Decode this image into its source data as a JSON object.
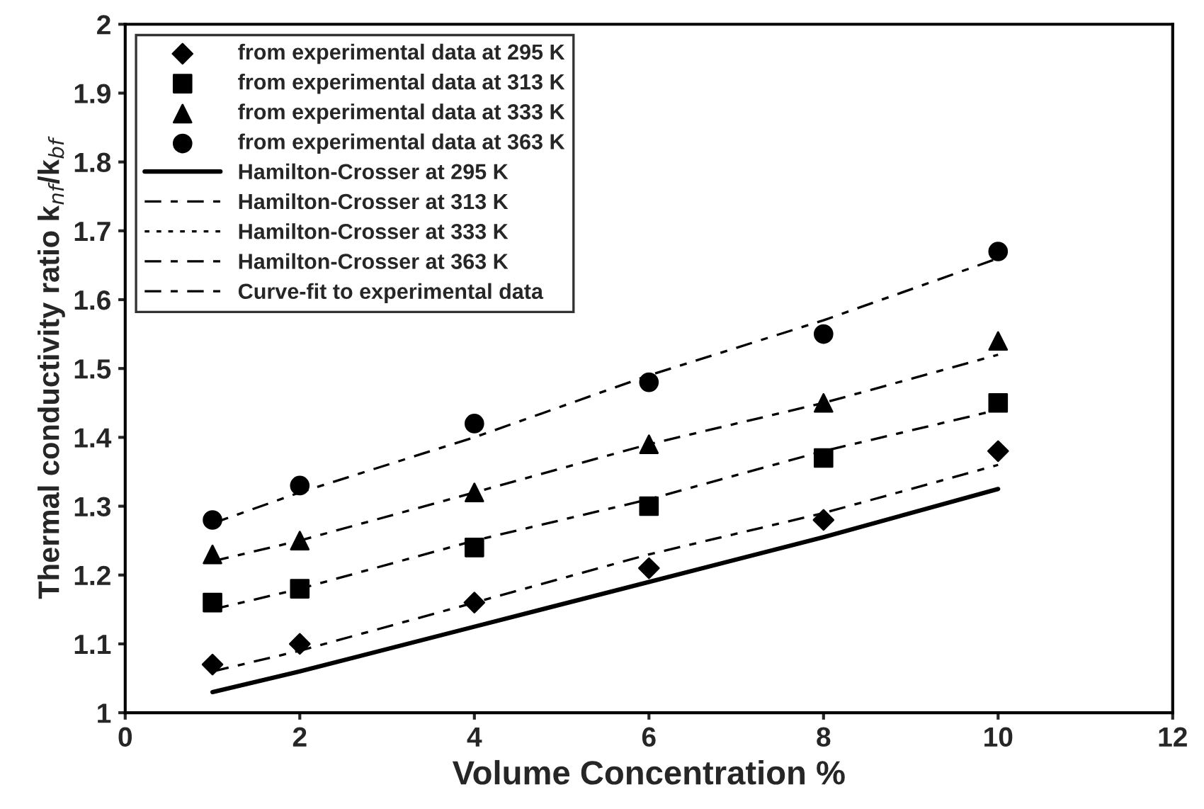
{
  "chart_data": {
    "type": "scatter",
    "xlabel": "Volume Concentration %",
    "ylabel": "Thermal conductivity ratio k$_{nf}$/k$_{bf}$",
    "x": [
      1,
      2,
      4,
      6,
      8,
      10
    ],
    "xlim": [
      0,
      12
    ],
    "xticks": [
      0,
      2,
      4,
      6,
      8,
      10,
      12
    ],
    "ylim": [
      1,
      2
    ],
    "yticks": [
      1,
      1.1,
      1.2,
      1.3,
      1.4,
      1.5,
      1.6,
      1.7,
      1.8,
      1.9,
      2
    ],
    "grid": false,
    "legend": "top left",
    "series": [
      {
        "name": "from experimental data at 295 K",
        "marker": "diamond",
        "color": "#000000",
        "values": [
          1.07,
          1.1,
          1.16,
          1.21,
          1.28,
          1.38
        ]
      },
      {
        "name": "from experimental data at 313 K",
        "marker": "square",
        "color": "#000000",
        "values": [
          1.16,
          1.18,
          1.24,
          1.3,
          1.37,
          1.45
        ]
      },
      {
        "name": "from experimental data at 333 K",
        "marker": "triangle",
        "color": "#000000",
        "values": [
          1.23,
          1.25,
          1.32,
          1.39,
          1.45,
          1.54
        ]
      },
      {
        "name": "from experimental data at 363 K",
        "marker": "circle",
        "color": "#000000",
        "values": [
          1.28,
          1.33,
          1.42,
          1.48,
          1.55,
          1.67
        ]
      },
      {
        "name": "Hamilton-Crosser at 295 K",
        "type": "line",
        "line_style": "solid",
        "color": "#000000",
        "values": [
          1.03,
          1.06,
          1.125,
          1.19,
          1.255,
          1.325
        ]
      },
      {
        "name": "Hamilton-Crosser at 313 K",
        "type": "line",
        "line_style": "dashed",
        "color": "#000000",
        "values": [
          null,
          null,
          null,
          null,
          null,
          null
        ]
      },
      {
        "name": "Hamilton-Crosser at 333 K",
        "type": "line",
        "line_style": "dotted",
        "color": "#000000",
        "values": [
          null,
          null,
          null,
          null,
          null,
          null
        ]
      },
      {
        "name": "Hamilton-Crosser at 363 K",
        "type": "line",
        "line_style": "dashed",
        "color": "#000000",
        "values": [
          null,
          null,
          null,
          null,
          null,
          null
        ]
      },
      {
        "name": "Curve-fit to experimental data",
        "type": "line",
        "line_style": "dashed",
        "color": "#000000",
        "values": [
          1.06,
          1.09,
          1.16,
          1.23,
          1.29,
          1.36
        ]
      },
      {
        "type": "line",
        "line_style": "dashed",
        "color": "#000000",
        "values": [
          1.15,
          1.18,
          1.25,
          1.31,
          1.38,
          1.44
        ]
      },
      {
        "type": "line",
        "line_style": "dashed",
        "color": "#000000",
        "values": [
          1.22,
          1.25,
          1.32,
          1.39,
          1.45,
          1.52
        ]
      },
      {
        "type": "line",
        "line_style": "dashed",
        "color": "#000000",
        "values": [
          1.275,
          1.32,
          1.4,
          1.49,
          1.57,
          1.66
        ]
      }
    ]
  }
}
